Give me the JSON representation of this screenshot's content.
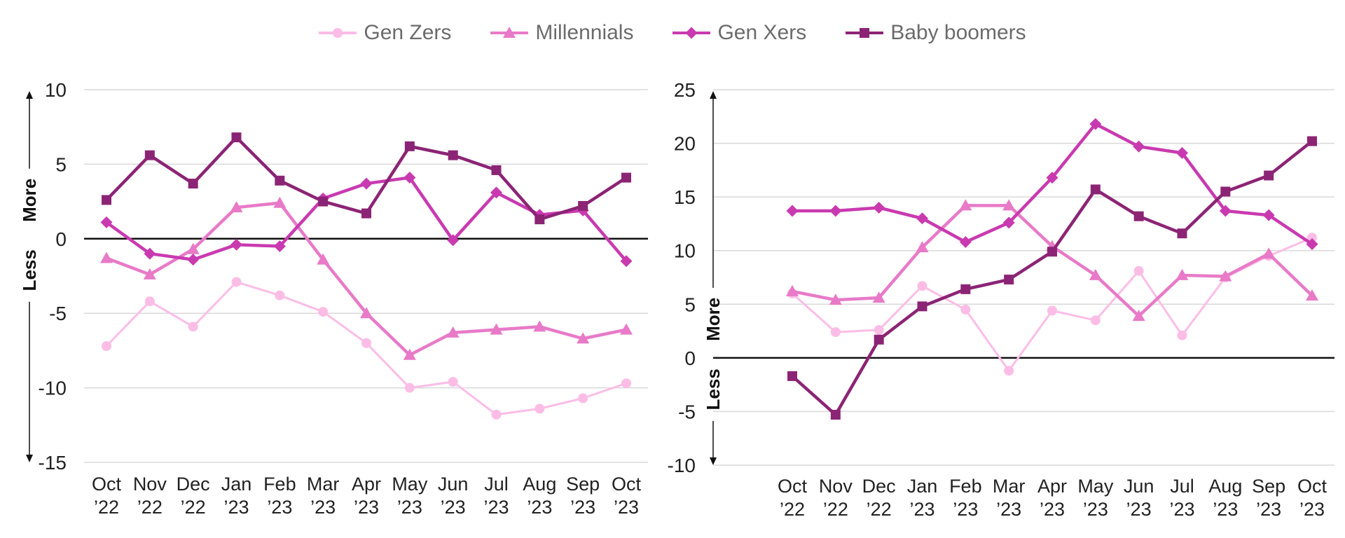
{
  "legend": [
    {
      "name": "Gen Zers",
      "color": "#fbbde6",
      "marker": "circle"
    },
    {
      "name": "Millennials",
      "color": "#e87ac8",
      "marker": "triangle"
    },
    {
      "name": "Gen Xers",
      "color": "#c93ab0",
      "marker": "diamond"
    },
    {
      "name": "Baby boomers",
      "color": "#8c2475",
      "marker": "square"
    }
  ],
  "chart_data": [
    {
      "type": "line",
      "categories": [
        "Oct\n’22",
        "Nov\n’22",
        "Dec\n’22",
        "Jan\n’23",
        "Feb\n’23",
        "Mar\n’23",
        "Apr\n’23",
        "May\n’23",
        "Jun\n’23",
        "Jul\n’23",
        "Aug\n’23",
        "Sep\n’23",
        "Oct\n’23"
      ],
      "ylim": [
        -15,
        10
      ],
      "yticks": [
        10,
        5,
        0,
        -5,
        -10,
        -15
      ],
      "axis_arrow_labels": {
        "up": "More",
        "down": "Less"
      },
      "grid": true,
      "legend_position": "top-center",
      "series": [
        {
          "name": "Gen Zers",
          "values": [
            -7.2,
            -4.2,
            -5.9,
            -2.9,
            -3.8,
            -4.9,
            -7.0,
            -10.0,
            -9.6,
            -11.8,
            -11.4,
            -10.7,
            -9.7
          ]
        },
        {
          "name": "Millennials",
          "values": [
            -1.3,
            -2.4,
            -0.7,
            2.1,
            2.4,
            -1.4,
            -5.0,
            -7.8,
            -6.3,
            -6.1,
            -5.9,
            -6.7,
            -6.1
          ]
        },
        {
          "name": "Gen Xers",
          "values": [
            1.1,
            -1.0,
            -1.4,
            -0.4,
            -0.5,
            2.7,
            3.7,
            4.1,
            -0.1,
            3.1,
            1.6,
            1.9,
            -1.5
          ]
        },
        {
          "name": "Baby boomers",
          "values": [
            2.6,
            5.6,
            3.7,
            6.8,
            3.9,
            2.5,
            1.7,
            6.2,
            5.6,
            4.6,
            1.3,
            2.2,
            4.1
          ]
        }
      ]
    },
    {
      "type": "line",
      "categories": [
        "Oct\n’22",
        "Nov\n’22",
        "Dec\n’22",
        "Jan\n’23",
        "Feb\n’23",
        "Mar\n’23",
        "Apr\n’23",
        "May\n’23",
        "Jun\n’23",
        "Jul\n’23",
        "Aug\n’23",
        "Sep\n’23",
        "Oct\n’23"
      ],
      "ylim": [
        -10,
        25
      ],
      "yticks": [
        25,
        20,
        15,
        10,
        5,
        0,
        -5,
        -10
      ],
      "axis_arrow_labels": {
        "up": "More",
        "down": "Less"
      },
      "grid": true,
      "legend_position": "top-center",
      "series": [
        {
          "name": "Gen Zers",
          "values": [
            6.0,
            2.4,
            2.6,
            6.7,
            4.5,
            -1.2,
            4.4,
            3.5,
            8.1,
            2.1,
            7.5,
            9.5,
            11.2
          ]
        },
        {
          "name": "Millennials",
          "values": [
            6.2,
            5.4,
            5.6,
            10.3,
            14.2,
            14.2,
            10.4,
            7.7,
            3.9,
            7.7,
            7.6,
            9.7,
            5.8
          ]
        },
        {
          "name": "Gen Xers",
          "values": [
            13.7,
            13.7,
            14.0,
            13.0,
            10.8,
            12.6,
            16.8,
            21.8,
            19.7,
            19.1,
            13.7,
            13.3,
            10.6
          ]
        },
        {
          "name": "Baby boomers",
          "values": [
            -1.7,
            -5.3,
            1.7,
            4.8,
            6.4,
            7.3,
            9.9,
            15.7,
            13.2,
            11.6,
            15.5,
            17.0,
            20.2
          ]
        }
      ]
    }
  ]
}
